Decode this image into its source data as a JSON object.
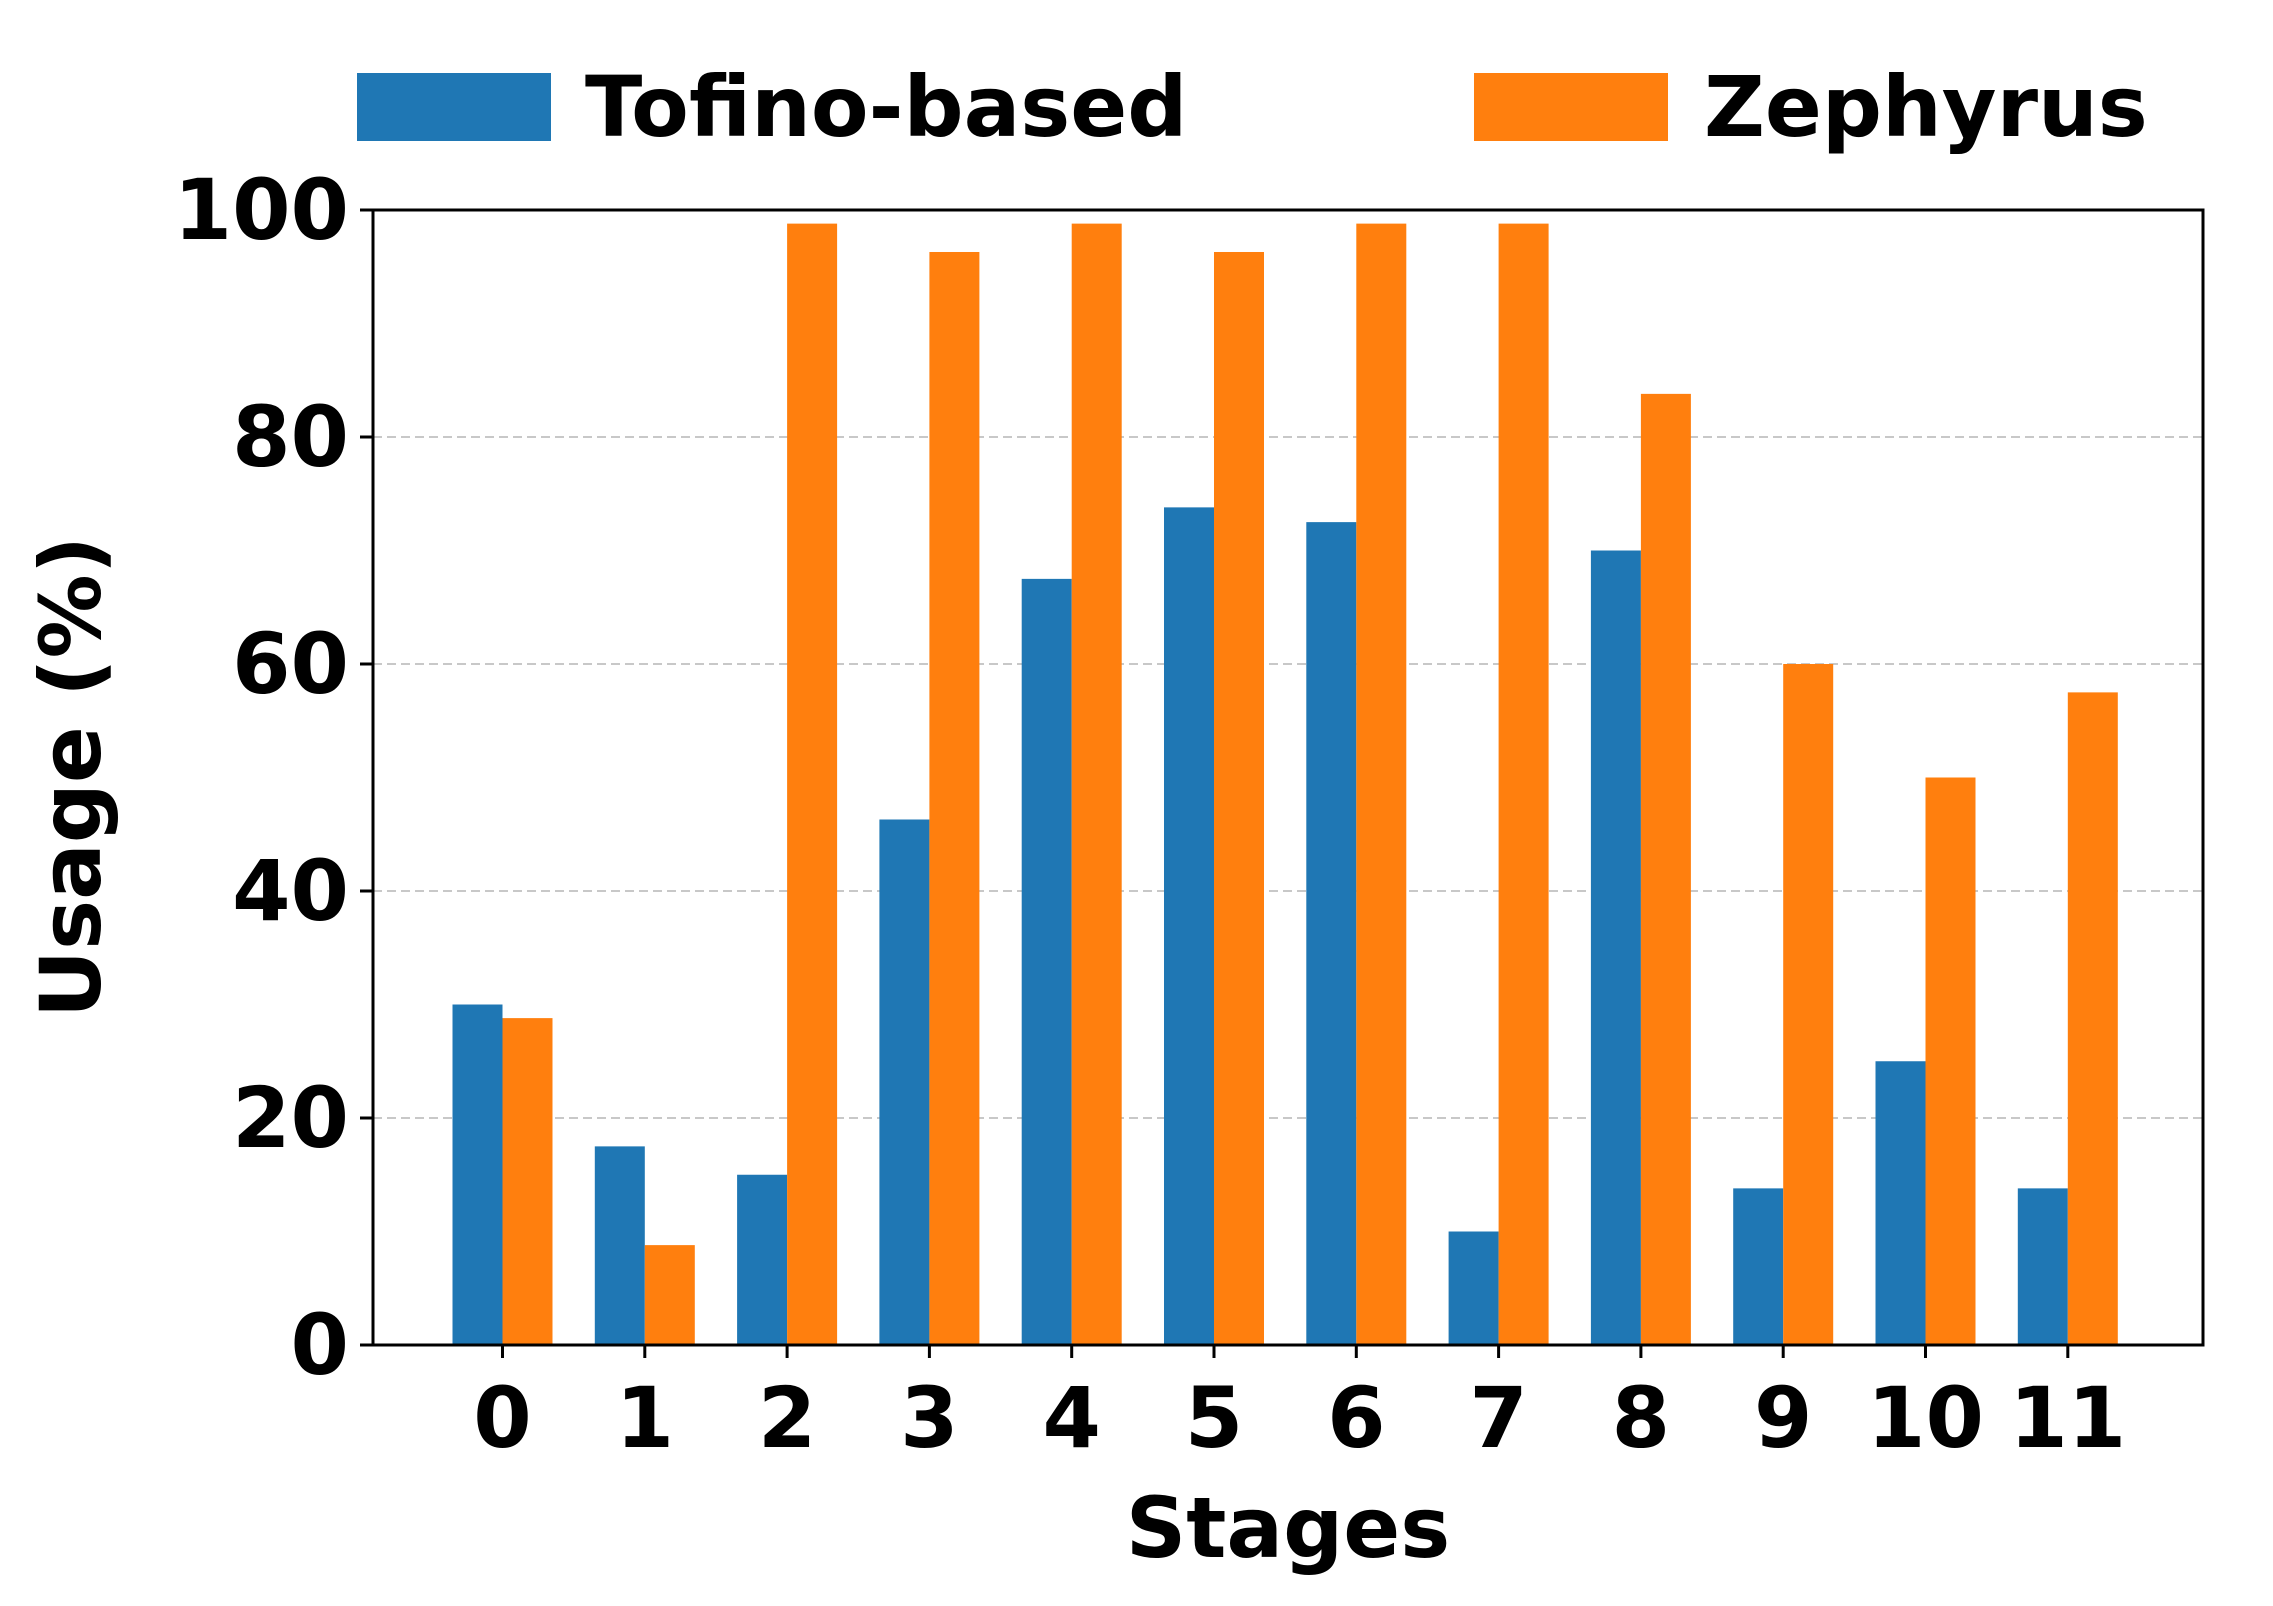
{
  "chart_data": {
    "type": "bar",
    "title": "",
    "xlabel": "Stages",
    "ylabel": "Usage (%)",
    "ylim": [
      0,
      100
    ],
    "yticks": [
      0,
      20,
      40,
      60,
      80,
      100
    ],
    "grid": "horizontal dashed",
    "legend_position": "top",
    "categories": [
      "0",
      "1",
      "2",
      "3",
      "4",
      "5",
      "6",
      "7",
      "8",
      "9",
      "10",
      "11"
    ],
    "series": [
      {
        "name": "Tofino-based",
        "color": "#1f77b4",
        "values": [
          30,
          17.5,
          15,
          46.3,
          67.5,
          73.8,
          72.5,
          10,
          70,
          13.8,
          25,
          13.8
        ]
      },
      {
        "name": "Zephyrus",
        "color": "#ff7f0e",
        "values": [
          28.8,
          8.8,
          98.8,
          96.3,
          98.8,
          96.3,
          98.8,
          98.8,
          83.8,
          60,
          50,
          57.5
        ]
      }
    ]
  }
}
